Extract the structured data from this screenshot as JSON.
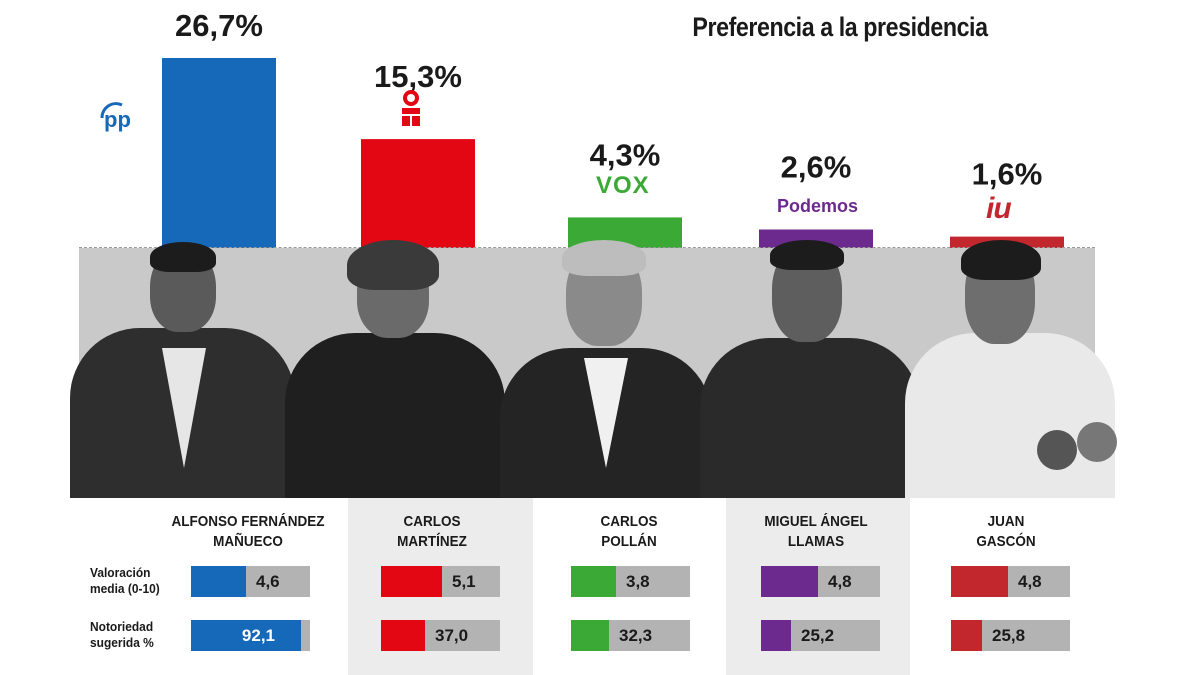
{
  "chart_data": [
    {
      "type": "bar",
      "title": "Preferencia a la presidencia",
      "categories": [
        "PP",
        "PSOE",
        "VOX",
        "Podemos",
        "IU"
      ],
      "values": [
        26.7,
        15.3,
        4.3,
        2.6,
        1.6
      ],
      "labels": [
        "26,7%",
        "15,3%",
        "4,3%",
        "2,6%",
        "1,6%"
      ],
      "colors": [
        "#1569b8",
        "#e30613",
        "#3ba935",
        "#6d2a8e",
        "#c1272d"
      ],
      "ylim": [
        0,
        26.7
      ]
    },
    {
      "type": "bar",
      "title": "",
      "candidates": [
        {
          "name1": "ALFONSO FERNÁNDEZ",
          "name2": "MAÑUECO",
          "party": "PP",
          "color": "#1569b8"
        },
        {
          "name1": "CARLOS",
          "name2": "MARTÍNEZ",
          "party": "PSOE",
          "color": "#e30613"
        },
        {
          "name1": "CARLOS",
          "name2": "POLLÁN",
          "party": "VOX",
          "color": "#3ba935"
        },
        {
          "name1": "MIGUEL ÁNGEL",
          "name2": "LLAMAS",
          "party": "Podemos",
          "color": "#6d2a8e"
        },
        {
          "name1": "JUAN",
          "name2": "GASCÓN",
          "party": "IU",
          "color": "#c1272d"
        }
      ],
      "series": [
        {
          "name1": "Valoración",
          "name2": "media (0-10)",
          "max": 10,
          "values": [
            4.6,
            5.1,
            3.8,
            4.8,
            4.8
          ],
          "labels": [
            "4,6",
            "5,1",
            "3,8",
            "4,8",
            "4,8"
          ]
        },
        {
          "name1": "Notoriedad",
          "name2": "sugerida %",
          "max": 100,
          "values": [
            92.1,
            37.0,
            32.3,
            25.2,
            25.8
          ],
          "labels": [
            "92,1",
            "37,0",
            "32,3",
            "25,2",
            "25,8"
          ]
        }
      ]
    }
  ],
  "logos": {
    "pp": "pp",
    "psoe": "psoe-rose-icon",
    "vox": "VOX",
    "podemos": "Podemos",
    "iu": "iu"
  }
}
